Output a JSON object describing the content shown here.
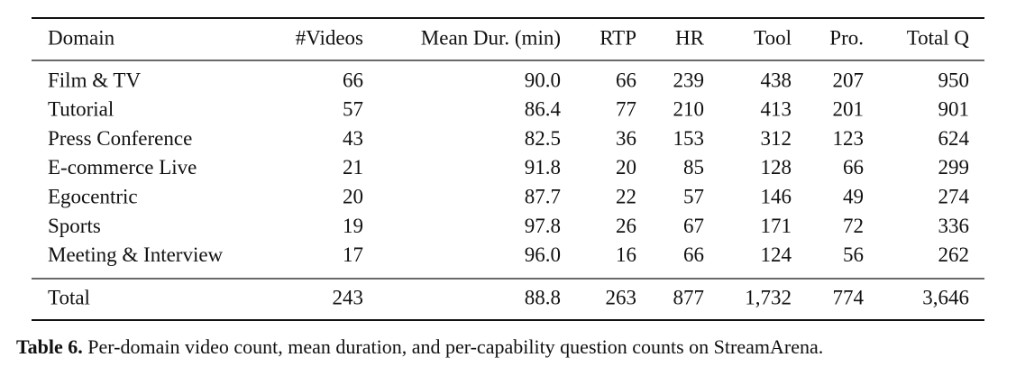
{
  "table": {
    "header": [
      "Domain",
      "#Videos",
      "Mean Dur. (min)",
      "RTP",
      "HR",
      "Tool",
      "Pro.",
      "Total Q"
    ],
    "rows": [
      [
        "Film & TV",
        "66",
        "90.0",
        "66",
        "239",
        "438",
        "207",
        "950"
      ],
      [
        "Tutorial",
        "57",
        "86.4",
        "77",
        "210",
        "413",
        "201",
        "901"
      ],
      [
        "Press Conference",
        "43",
        "82.5",
        "36",
        "153",
        "312",
        "123",
        "624"
      ],
      [
        "E-commerce Live",
        "21",
        "91.8",
        "20",
        "85",
        "128",
        "66",
        "299"
      ],
      [
        "Egocentric",
        "20",
        "87.7",
        "22",
        "57",
        "146",
        "49",
        "274"
      ],
      [
        "Sports",
        "19",
        "97.8",
        "26",
        "67",
        "171",
        "72",
        "336"
      ],
      [
        "Meeting & Interview",
        "17",
        "96.0",
        "16",
        "66",
        "124",
        "56",
        "262"
      ]
    ],
    "total": [
      "Total",
      "243",
      "88.8",
      "263",
      "877",
      "1,732",
      "774",
      "3,646"
    ]
  },
  "caption": {
    "label": "Table 6.",
    "text": "Per-domain video count, mean duration, and per-capability question counts on StreamArena."
  }
}
